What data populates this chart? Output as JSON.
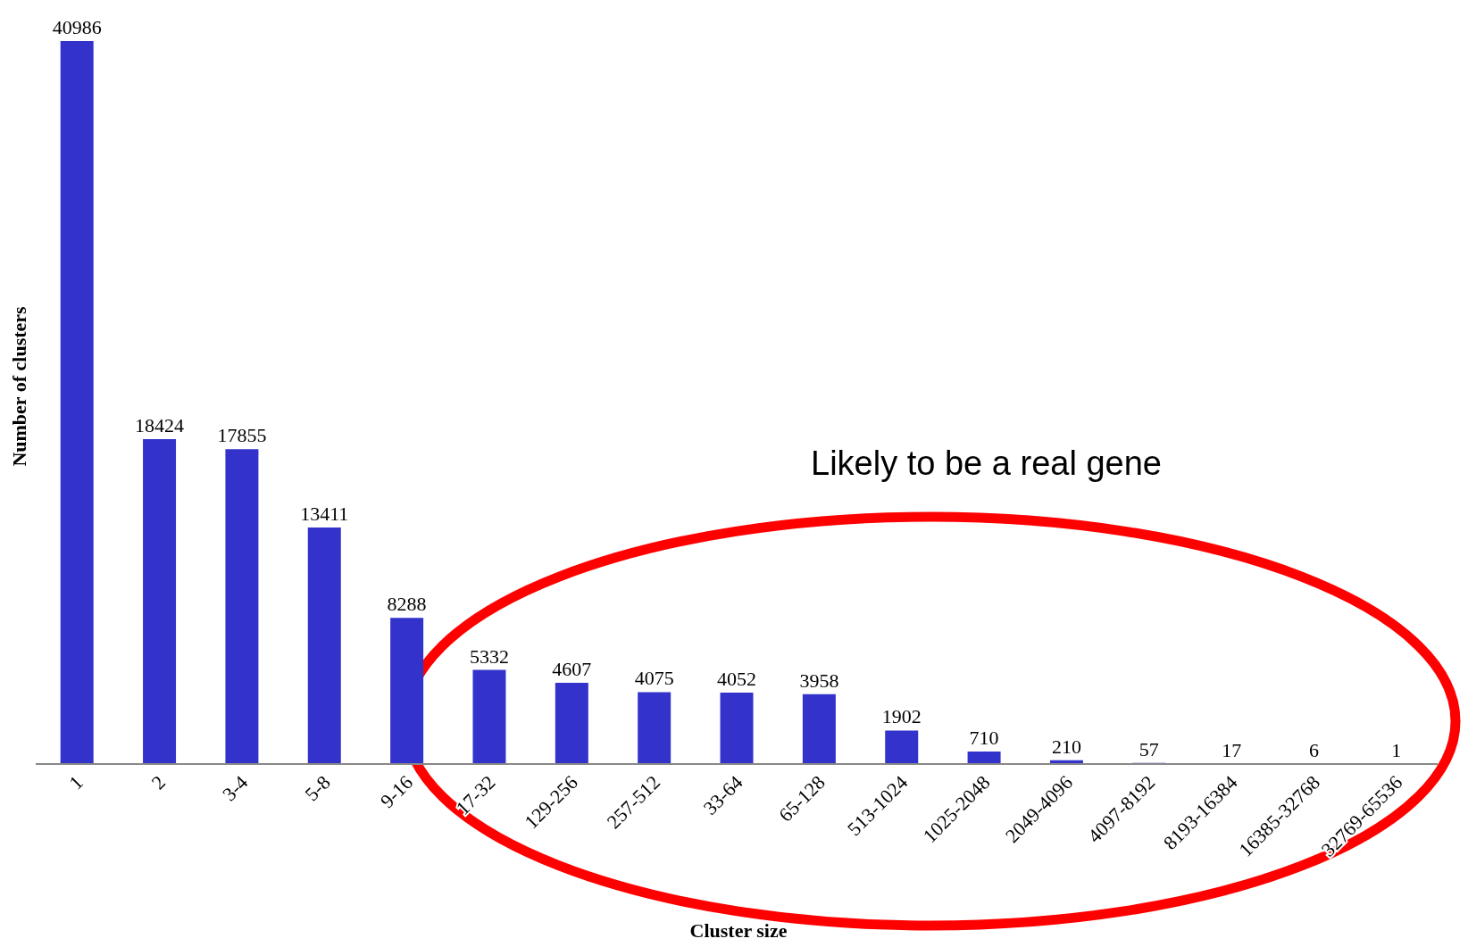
{
  "chart_data": {
    "type": "bar",
    "xlabel": "Cluster size",
    "ylabel": "Number of clusters",
    "categories": [
      "1",
      "2",
      "3-4",
      "5-8",
      "9-16",
      "17-32",
      "129-256",
      "257-512",
      "33-64",
      "65-128",
      "513-1024",
      "1025-2048",
      "2049-4096",
      "4097-8192",
      "8193-16384",
      "16385-32768",
      "32769-65536"
    ],
    "values": [
      40986,
      18424,
      17855,
      13411,
      8288,
      5332,
      4607,
      4075,
      4052,
      3958,
      1902,
      710,
      210,
      57,
      17,
      6,
      1
    ],
    "color": "#3333cc",
    "data_labels": true,
    "annotations": [
      "Likely to be a real gene"
    ]
  }
}
